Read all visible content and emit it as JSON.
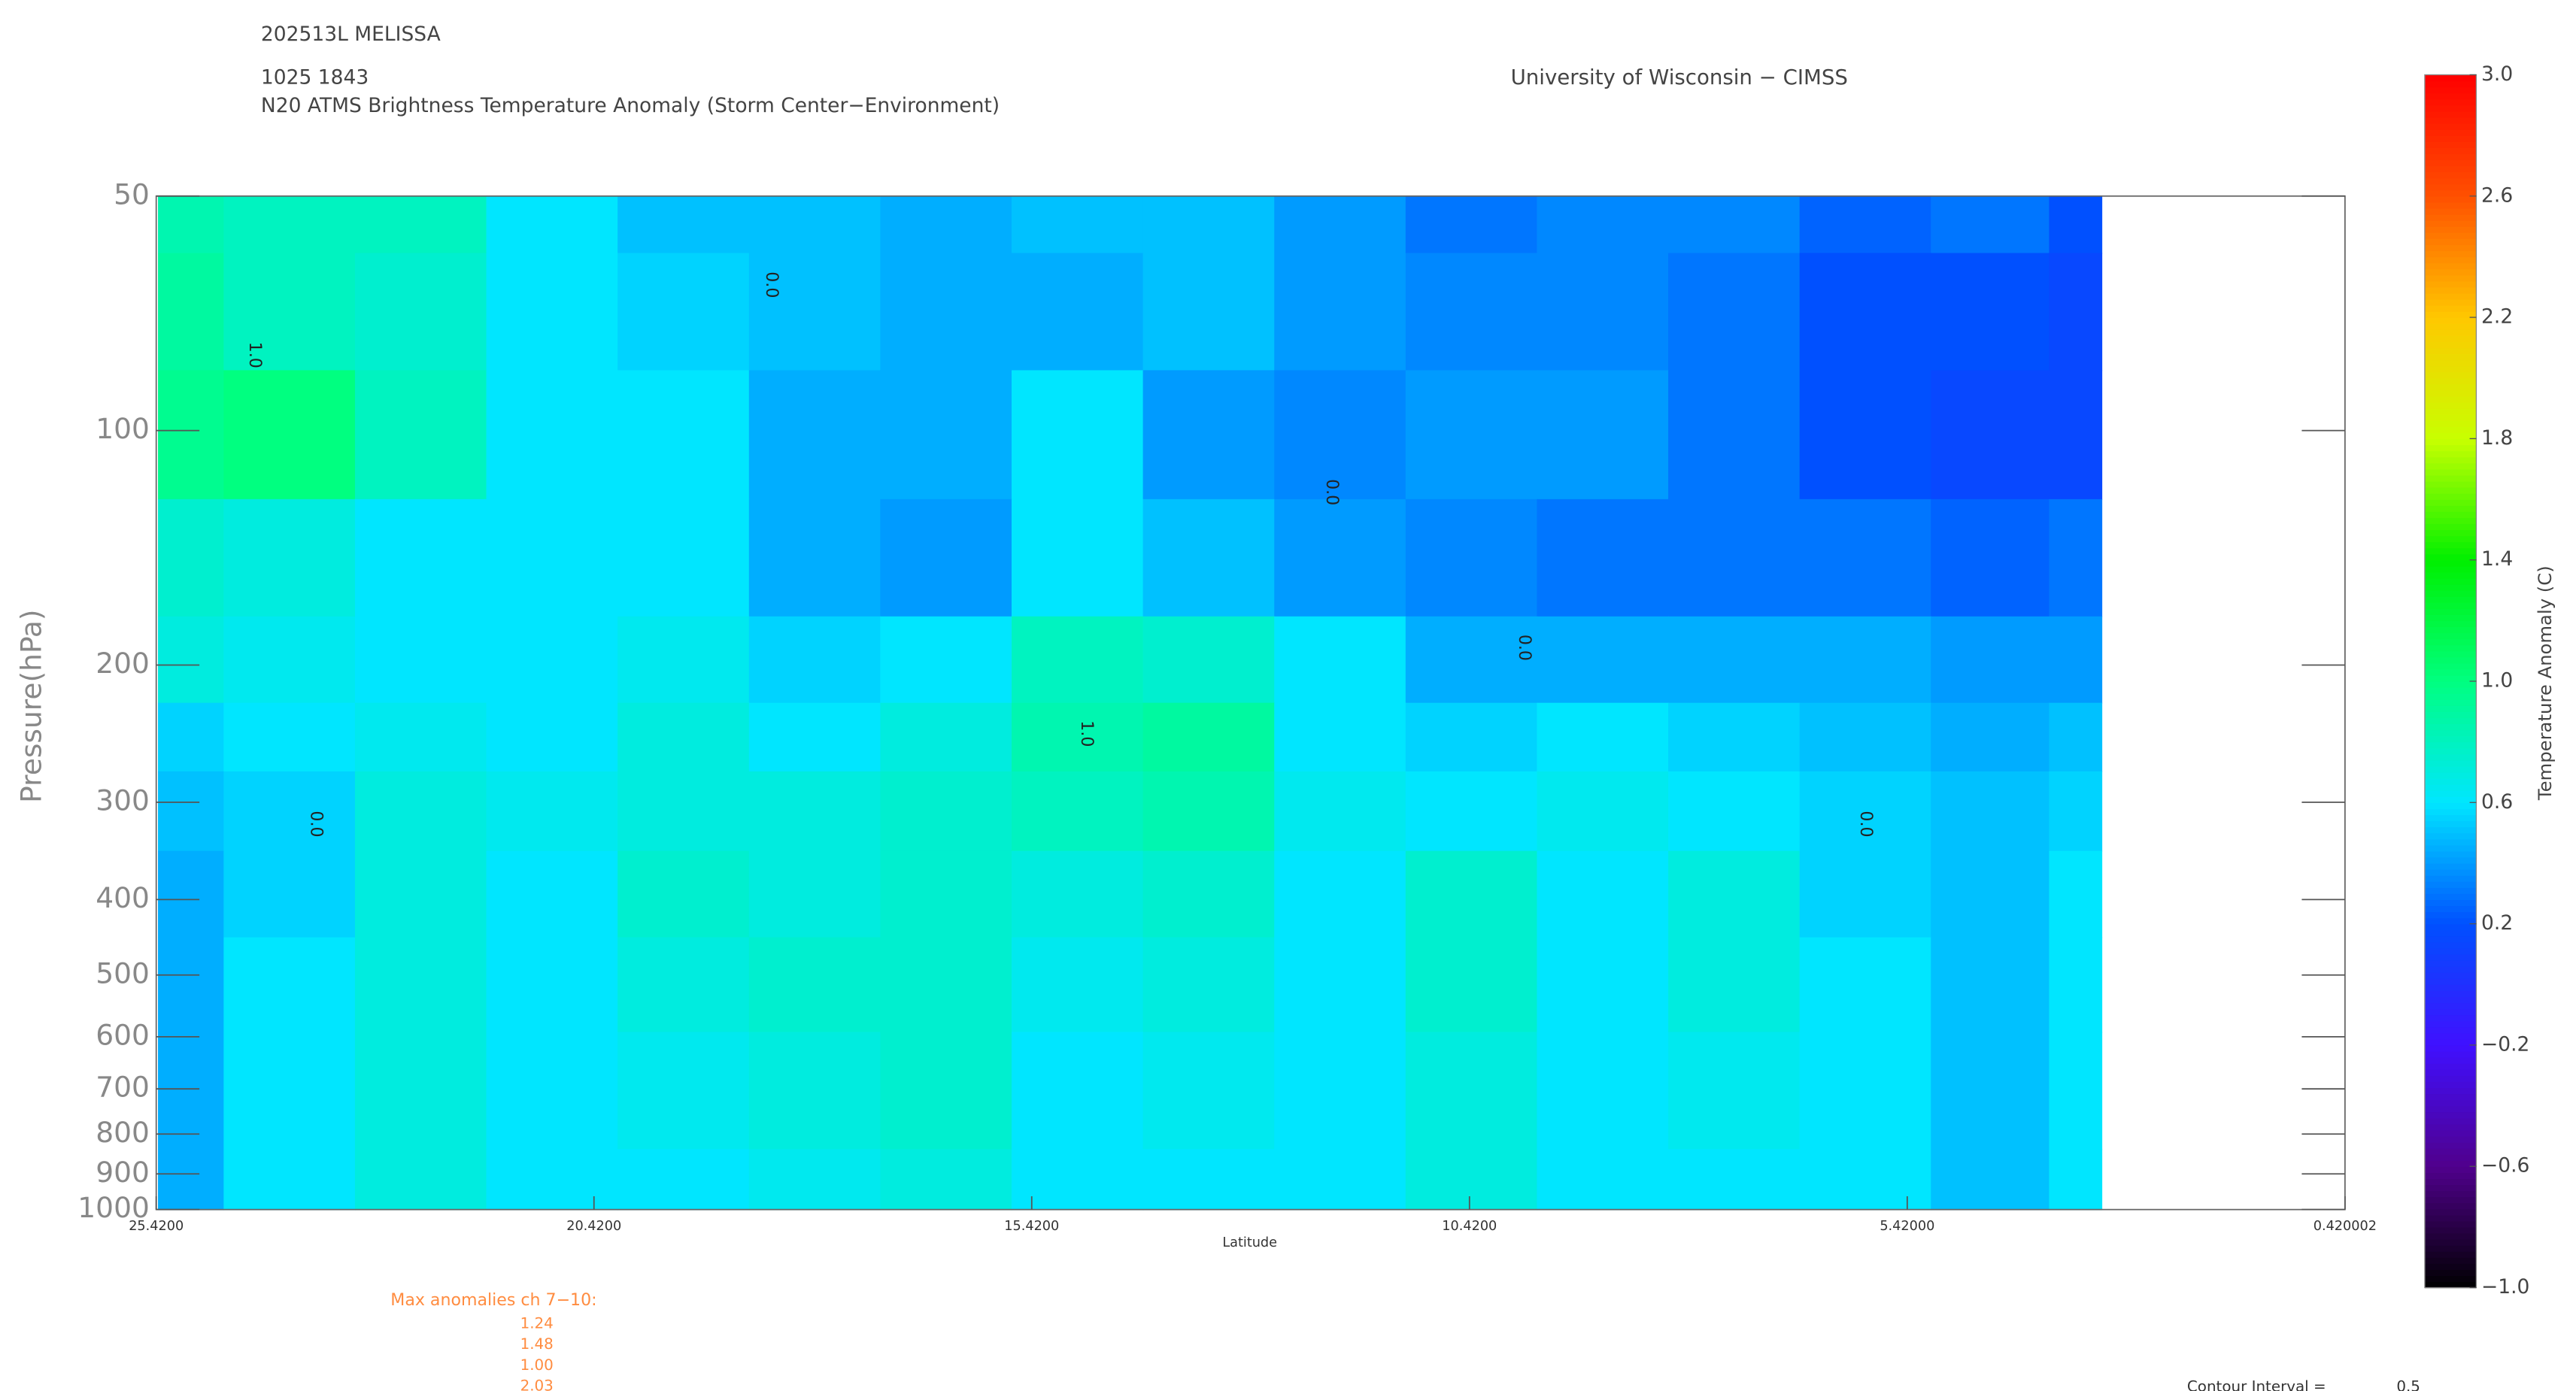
{
  "chart_data": {
    "type": "contour",
    "storm": "202513L MELISSA",
    "time": "1025 1843",
    "title": "N20 ATMS Brightness Temperature Anomaly (Storm Center−Environment)",
    "source": "University of Wisconsin − CIMSS",
    "x_label": "Latitude",
    "y_label": "Pressure(hPa)",
    "colorbar_label": "Temperature Anomaly (C)",
    "xlim": [
      25.42,
      0.420002
    ],
    "xticks": [
      {
        "value": 25.42,
        "label": "25.4200"
      },
      {
        "value": 20.42,
        "label": "20.4200"
      },
      {
        "value": 15.42,
        "label": "15.4200"
      },
      {
        "value": 10.42,
        "label": "10.4200"
      },
      {
        "value": 5.42,
        "label": "5.42000"
      },
      0.420002
    ],
    "ylim": [
      50,
      1000
    ],
    "log_y": true,
    "yticks": [
      50,
      100,
      200,
      300,
      400,
      500,
      600,
      700,
      800,
      900,
      1000
    ],
    "clim": [
      -1,
      3
    ],
    "cticks": [
      {
        "value": 3,
        "label": "3.0"
      },
      2.6,
      2.2,
      1.8,
      1.4,
      {
        "value": 1,
        "label": "1.0"
      },
      0.6,
      0.2,
      {
        "value": -0.2,
        "label": "−0.2"
      },
      {
        "value": -0.6,
        "label": "−0.6"
      },
      {
        "value": -1,
        "label": "−1.0"
      }
    ],
    "colormap": [
      {
        "value": -1,
        "color": "#000000"
      },
      {
        "value": -0.6,
        "color": "#50008c"
      },
      {
        "value": -0.2,
        "color": "#4010ff"
      },
      {
        "value": 0.2,
        "color": "#0050ff"
      },
      {
        "value": 0.6,
        "color": "#00e6ff"
      },
      {
        "value": 1,
        "color": "#00ff80"
      },
      {
        "value": 1.4,
        "color": "#00f000"
      },
      {
        "value": 1.8,
        "color": "#c8ff00"
      },
      {
        "value": 2.2,
        "color": "#ffc800"
      },
      {
        "value": 2.6,
        "color": "#ff5000"
      },
      {
        "value": 3,
        "color": "#ff0000"
      }
    ],
    "x": [
      25.4,
      23.9,
      22.4,
      20.9,
      19.4,
      17.9,
      16.4,
      14.9,
      13.4,
      11.9,
      10.4,
      8.9,
      7.4,
      5.9,
      4.4,
      3.2
    ],
    "y": [
      50,
      70,
      100,
      150,
      200,
      250,
      300,
      400,
      500,
      700,
      1000
    ],
    "z": [
      [
        0.85,
        0.8,
        0.8,
        0.6,
        0.5,
        0.5,
        0.45,
        0.5,
        0.5,
        0.4,
        0.3,
        0.35,
        0.35,
        0.25,
        0.3,
        0.2
      ],
      [
        0.9,
        0.8,
        0.75,
        0.6,
        0.55,
        0.5,
        0.45,
        0.45,
        0.5,
        0.4,
        0.35,
        0.35,
        0.3,
        0.2,
        0.2,
        0.15
      ],
      [
        0.95,
        1.0,
        0.8,
        0.6,
        0.6,
        0.45,
        0.45,
        0.6,
        0.4,
        0.35,
        0.4,
        0.4,
        0.3,
        0.2,
        0.15,
        0.15
      ],
      [
        0.75,
        0.7,
        0.6,
        0.6,
        0.6,
        0.45,
        0.4,
        0.6,
        0.5,
        0.4,
        0.35,
        0.3,
        0.3,
        0.3,
        0.25,
        0.3
      ],
      [
        0.7,
        0.65,
        0.6,
        0.6,
        0.65,
        0.55,
        0.6,
        0.8,
        0.75,
        0.6,
        0.45,
        0.45,
        0.45,
        0.45,
        0.4,
        0.4
      ],
      [
        0.55,
        0.6,
        0.65,
        0.6,
        0.7,
        0.6,
        0.7,
        0.85,
        0.9,
        0.6,
        0.55,
        0.6,
        0.55,
        0.5,
        0.45,
        0.5
      ],
      [
        0.5,
        0.55,
        0.7,
        0.65,
        0.7,
        0.7,
        0.75,
        0.8,
        0.85,
        0.65,
        0.6,
        0.65,
        0.6,
        0.55,
        0.5,
        0.55
      ],
      [
        0.45,
        0.55,
        0.7,
        0.6,
        0.75,
        0.7,
        0.75,
        0.7,
        0.75,
        0.6,
        0.75,
        0.6,
        0.7,
        0.55,
        0.5,
        0.6
      ],
      [
        0.45,
        0.6,
        0.7,
        0.6,
        0.7,
        0.75,
        0.75,
        0.65,
        0.7,
        0.6,
        0.75,
        0.6,
        0.7,
        0.6,
        0.5,
        0.6
      ],
      [
        0.45,
        0.6,
        0.7,
        0.6,
        0.65,
        0.7,
        0.75,
        0.6,
        0.65,
        0.6,
        0.7,
        0.6,
        0.65,
        0.6,
        0.5,
        0.6
      ],
      [
        0.45,
        0.6,
        0.7,
        0.6,
        0.6,
        0.65,
        0.7,
        0.6,
        0.6,
        0.6,
        0.7,
        0.6,
        0.6,
        0.6,
        0.5,
        0.6
      ]
    ],
    "annotations": [
      {
        "text": "1.0",
        "x": 24.3,
        "y": 80
      },
      {
        "text": "0.0",
        "x": 18.4,
        "y": 65
      },
      {
        "text": "0.0",
        "x": 12.0,
        "y": 120
      },
      {
        "text": "1.0",
        "x": 14.8,
        "y": 245
      },
      {
        "text": "0.0",
        "x": 9.8,
        "y": 190
      },
      {
        "text": "0.0",
        "x": 5.9,
        "y": 320
      },
      {
        "text": "0.0",
        "x": 23.6,
        "y": 320
      }
    ],
    "max_anomalies": {
      "label": "Max anomalies ch 7−10:",
      "values": [
        1.24,
        1.48,
        1.0,
        2.03
      ],
      "value_labels": [
        "1.24",
        "1.48",
        "1.00",
        "2.03"
      ]
    },
    "contour_interval": {
      "label": "Contour Interval =",
      "value": 0.5
    }
  }
}
